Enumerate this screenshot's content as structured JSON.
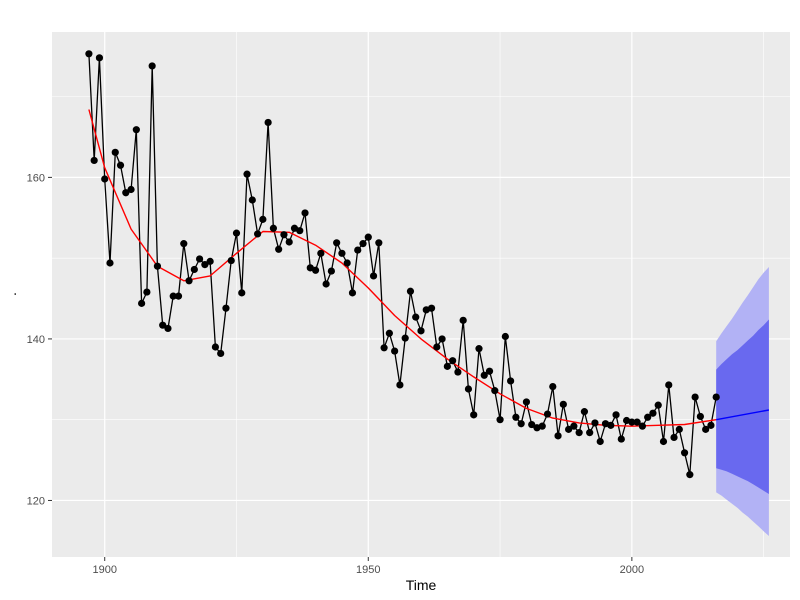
{
  "chart_data": {
    "type": "line",
    "xlabel": "Time",
    "ylabel": ".",
    "xlim": [
      1890,
      2030
    ],
    "ylim": [
      113,
      178
    ],
    "x_ticks": [
      1900,
      1950,
      2000
    ],
    "y_ticks": [
      120,
      140,
      160
    ],
    "x_minor_ticks": [
      1925,
      1975,
      2025
    ],
    "y_minor_ticks": [
      130,
      150,
      170
    ],
    "grid": true,
    "background": "#ebebeb",
    "series": [
      {
        "role": "observed",
        "color": "#000000",
        "x": [
          1897,
          1898,
          1899,
          1900,
          1901,
          1902,
          1903,
          1904,
          1905,
          1906,
          1907,
          1908,
          1909,
          1910,
          1911,
          1912,
          1913,
          1914,
          1915,
          1916,
          1917,
          1918,
          1919,
          1920,
          1921,
          1922,
          1923,
          1924,
          1925,
          1926,
          1927,
          1928,
          1929,
          1930,
          1931,
          1932,
          1933,
          1934,
          1935,
          1936,
          1937,
          1938,
          1939,
          1940,
          1941,
          1942,
          1943,
          1944,
          1945,
          1946,
          1947,
          1948,
          1949,
          1950,
          1951,
          1952,
          1953,
          1954,
          1955,
          1956,
          1957,
          1958,
          1959,
          1960,
          1961,
          1962,
          1963,
          1964,
          1965,
          1966,
          1967,
          1968,
          1969,
          1970,
          1971,
          1972,
          1973,
          1974,
          1975,
          1976,
          1977,
          1978,
          1979,
          1980,
          1981,
          1982,
          1983,
          1984,
          1985,
          1986,
          1987,
          1988,
          1989,
          1990,
          1991,
          1992,
          1993,
          1994,
          1995,
          1996,
          1997,
          1998,
          1999,
          2000,
          2001,
          2002,
          2003,
          2004,
          2005,
          2006,
          2007,
          2008,
          2009,
          2010,
          2011,
          2012,
          2013,
          2014,
          2015,
          2016
        ],
        "y": [
          175.3,
          162.1,
          174.8,
          159.8,
          149.4,
          163.1,
          161.5,
          158.1,
          158.5,
          165.9,
          144.4,
          145.8,
          173.8,
          149.0,
          141.7,
          141.3,
          145.3,
          145.3,
          151.8,
          147.2,
          148.6,
          149.9,
          149.2,
          149.6,
          139.0,
          138.2,
          143.8,
          149.7,
          153.1,
          145.7,
          160.4,
          157.2,
          153.0,
          154.8,
          166.8,
          153.7,
          151.1,
          152.9,
          152.0,
          153.7,
          153.4,
          155.6,
          148.8,
          148.5,
          150.6,
          146.8,
          148.4,
          151.9,
          150.6,
          149.4,
          145.7,
          151.0,
          151.8,
          152.6,
          147.8,
          151.9,
          138.9,
          140.7,
          138.5,
          134.3,
          140.1,
          145.9,
          142.7,
          141.0,
          143.6,
          143.8,
          139.0,
          140.0,
          136.6,
          137.3,
          135.9,
          142.3,
          133.8,
          130.6,
          138.8,
          135.5,
          136.0,
          133.6,
          130.0,
          140.3,
          134.8,
          130.3,
          129.5,
          132.2,
          129.4,
          129.0,
          129.2,
          130.7,
          134.1,
          128.0,
          131.9,
          128.8,
          129.2,
          128.4,
          131.0,
          128.4,
          129.6,
          127.3,
          129.5,
          129.3,
          130.6,
          127.6,
          129.9,
          129.7,
          129.7,
          129.2,
          130.3,
          130.8,
          131.8,
          127.3,
          134.3,
          127.8,
          128.8,
          125.9,
          123.2,
          132.8,
          130.4,
          128.8,
          129.3,
          132.8
        ]
      },
      {
        "role": "smooth-fit",
        "color": "#ff0000",
        "x": [
          1897,
          1900,
          1905,
          1910,
          1915,
          1920,
          1925,
          1930,
          1935,
          1940,
          1945,
          1950,
          1955,
          1960,
          1965,
          1970,
          1975,
          1980,
          1985,
          1990,
          1995,
          2000,
          2005,
          2010,
          2016
        ],
        "y": [
          168.4,
          161.2,
          153.6,
          149.0,
          147.2,
          147.8,
          150.6,
          153.3,
          153.2,
          151.6,
          149.4,
          146.3,
          142.9,
          140.0,
          137.5,
          135.3,
          133.2,
          131.4,
          130.2,
          129.6,
          129.3,
          129.2,
          129.3,
          129.4,
          130.0
        ]
      },
      {
        "role": "forecast-mean",
        "color": "#0000ff",
        "x": [
          2016,
          2026
        ],
        "y": [
          130.0,
          131.2
        ]
      }
    ],
    "forecast_bands": [
      {
        "name": "80",
        "color": "#6969ef",
        "x": [
          2016,
          2017,
          2018,
          2019,
          2020,
          2021,
          2022,
          2023,
          2024,
          2025,
          2026
        ],
        "lower": [
          124.0,
          123.8,
          123.6,
          123.3,
          123.0,
          122.7,
          122.4,
          122.0,
          121.6,
          121.2,
          120.8
        ],
        "upper": [
          136.2,
          136.9,
          137.5,
          138.1,
          138.6,
          139.2,
          139.8,
          140.4,
          141.1,
          141.7,
          142.4
        ]
      },
      {
        "name": "95",
        "color": "#b2b2f5",
        "x": [
          2016,
          2017,
          2018,
          2019,
          2020,
          2021,
          2022,
          2023,
          2024,
          2025,
          2026
        ],
        "lower": [
          121.0,
          120.6,
          120.1,
          119.6,
          119.1,
          118.5,
          118.0,
          117.4,
          116.8,
          116.2,
          115.6
        ],
        "upper": [
          139.7,
          140.7,
          141.6,
          142.5,
          143.5,
          144.5,
          145.4,
          146.4,
          147.4,
          148.2,
          148.9
        ]
      }
    ]
  }
}
